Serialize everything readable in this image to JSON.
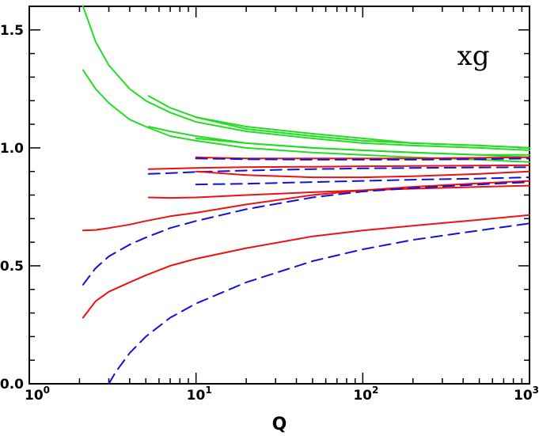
{
  "chart_data": {
    "type": "line",
    "title": "",
    "xlabel": "Q",
    "ylabel": "",
    "annotation": "xg",
    "xscale": "log",
    "xlim": [
      1,
      1000
    ],
    "ylim": [
      0,
      1.6
    ],
    "grid": false,
    "x_ticks": [
      {
        "base": "10",
        "exp": "0"
      },
      {
        "base": "10",
        "exp": "1"
      },
      {
        "base": "10",
        "exp": "2"
      },
      {
        "base": "10",
        "exp": "3"
      }
    ],
    "y_ticks": [
      "0.0",
      "0.5",
      "1.0",
      "1.5"
    ],
    "colors": {
      "green": "#22dd22",
      "red": "#ee1111",
      "blue": "#1111dd"
    },
    "series": [
      {
        "color": "green",
        "style": "solid",
        "x": [
          2.1,
          2.5,
          3,
          4,
          5,
          7,
          10,
          20,
          50,
          100,
          200,
          500,
          1000
        ],
        "y": [
          1.6,
          1.45,
          1.35,
          1.25,
          1.2,
          1.15,
          1.11,
          1.07,
          1.04,
          1.02,
          1.01,
          1.0,
          0.99
        ]
      },
      {
        "color": "green",
        "style": "solid",
        "x": [
          2.1,
          2.5,
          3,
          4,
          5,
          7,
          10,
          20,
          50,
          100,
          200,
          500,
          1000
        ],
        "y": [
          1.33,
          1.25,
          1.19,
          1.12,
          1.09,
          1.05,
          1.03,
          1.0,
          0.98,
          0.97,
          0.96,
          0.95,
          0.94
        ]
      },
      {
        "color": "green",
        "style": "solid",
        "x": [
          5.2,
          7,
          10,
          20,
          50,
          100,
          200,
          500,
          1000
        ],
        "y": [
          1.22,
          1.17,
          1.13,
          1.08,
          1.05,
          1.03,
          1.02,
          1.01,
          1.0
        ]
      },
      {
        "color": "green",
        "style": "solid",
        "x": [
          5.2,
          7,
          10,
          20,
          50,
          100,
          200,
          500,
          1000
        ],
        "y": [
          1.09,
          1.07,
          1.05,
          1.02,
          1.0,
          0.99,
          0.98,
          0.97,
          0.96
        ]
      },
      {
        "color": "green",
        "style": "solid",
        "x": [
          10,
          20,
          50,
          100,
          200,
          500,
          1000
        ],
        "y": [
          1.13,
          1.09,
          1.06,
          1.04,
          1.02,
          1.01,
          1.0
        ]
      },
      {
        "color": "green",
        "style": "solid",
        "x": [
          10,
          20,
          50,
          100,
          200,
          500,
          1000
        ],
        "y": [
          1.04,
          1.02,
          1.0,
          0.99,
          0.98,
          0.97,
          0.97
        ]
      },
      {
        "color": "red",
        "style": "solid",
        "x": [
          10,
          20,
          50,
          100,
          200,
          500,
          1000
        ],
        "y": [
          0.96,
          0.955,
          0.955,
          0.955,
          0.955,
          0.958,
          0.96
        ]
      },
      {
        "color": "blue",
        "style": "dashed",
        "x": [
          10,
          20,
          50,
          100,
          200,
          500,
          1000
        ],
        "y": [
          0.955,
          0.952,
          0.95,
          0.95,
          0.95,
          0.952,
          0.955
        ]
      },
      {
        "color": "red",
        "style": "solid",
        "x": [
          5.2,
          7,
          10,
          20,
          50,
          100,
          200,
          500,
          1000
        ],
        "y": [
          0.91,
          0.912,
          0.915,
          0.918,
          0.92,
          0.922,
          0.923,
          0.925,
          0.926
        ]
      },
      {
        "color": "blue",
        "style": "dashed",
        "x": [
          5.2,
          7,
          10,
          20,
          50,
          100,
          200,
          500,
          1000
        ],
        "y": [
          0.89,
          0.893,
          0.898,
          0.904,
          0.91,
          0.913,
          0.915,
          0.917,
          0.918
        ]
      },
      {
        "color": "red",
        "style": "solid",
        "x": [
          5.2,
          7,
          10,
          20,
          50,
          100,
          200,
          500,
          1000
        ],
        "y": [
          0.79,
          0.788,
          0.79,
          0.8,
          0.812,
          0.82,
          0.827,
          0.835,
          0.84
        ]
      },
      {
        "color": "red",
        "style": "solid",
        "x": [
          10,
          20,
          50,
          100,
          200,
          500,
          1000
        ],
        "y": [
          0.9,
          0.885,
          0.875,
          0.875,
          0.88,
          0.89,
          0.9
        ]
      },
      {
        "color": "blue",
        "style": "dashed",
        "x": [
          10,
          20,
          50,
          100,
          200,
          500,
          1000
        ],
        "y": [
          0.845,
          0.848,
          0.855,
          0.86,
          0.865,
          0.87,
          0.875
        ]
      },
      {
        "color": "red",
        "style": "solid",
        "x": [
          2.1,
          2.5,
          3,
          4,
          5,
          7,
          10,
          20,
          50,
          100,
          200,
          500,
          1000
        ],
        "y": [
          0.65,
          0.652,
          0.66,
          0.675,
          0.69,
          0.71,
          0.725,
          0.76,
          0.8,
          0.82,
          0.835,
          0.85,
          0.86
        ]
      },
      {
        "color": "blue",
        "style": "dashed",
        "x": [
          2.1,
          2.5,
          3,
          4,
          5,
          7,
          10,
          20,
          50,
          100,
          200,
          500,
          1000
        ],
        "y": [
          0.42,
          0.49,
          0.54,
          0.59,
          0.62,
          0.66,
          0.69,
          0.74,
          0.79,
          0.815,
          0.83,
          0.845,
          0.855
        ]
      },
      {
        "color": "red",
        "style": "solid",
        "x": [
          2.1,
          2.5,
          3,
          4,
          5,
          7,
          10,
          20,
          50,
          100,
          200,
          500,
          1000
        ],
        "y": [
          0.28,
          0.35,
          0.39,
          0.43,
          0.46,
          0.5,
          0.53,
          0.575,
          0.625,
          0.65,
          0.67,
          0.695,
          0.715
        ]
      },
      {
        "color": "blue",
        "style": "dashed",
        "x": [
          3.0,
          3.3,
          4,
          5,
          7,
          10,
          20,
          50,
          100,
          200,
          500,
          1000
        ],
        "y": [
          0.0,
          0.05,
          0.13,
          0.2,
          0.28,
          0.34,
          0.43,
          0.52,
          0.57,
          0.61,
          0.65,
          0.68
        ]
      }
    ]
  }
}
